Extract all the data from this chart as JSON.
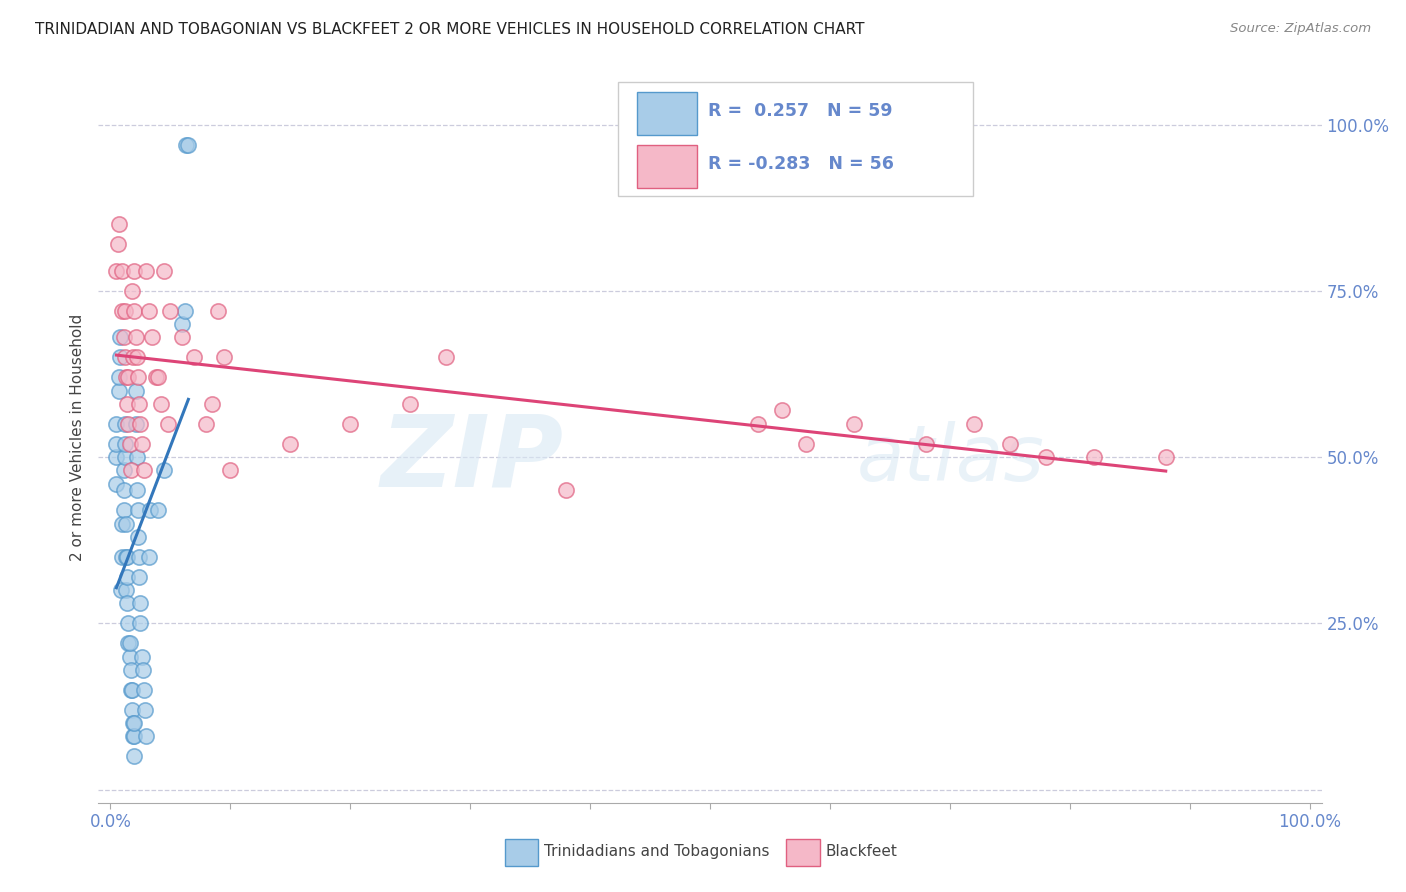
{
  "title": "TRINIDADIAN AND TOBAGONIAN VS BLACKFEET 2 OR MORE VEHICLES IN HOUSEHOLD CORRELATION CHART",
  "source": "Source: ZipAtlas.com",
  "ylabel": "2 or more Vehicles in Household",
  "legend_label1": "Trinidadians and Tobagonians",
  "legend_label2": "Blackfeet",
  "R1": 0.257,
  "N1": 59,
  "R2": -0.283,
  "N2": 56,
  "watermark_zip": "ZIP",
  "watermark_atlas": "atlas",
  "blue_fill": "#a8cce8",
  "blue_edge": "#5599cc",
  "pink_fill": "#f5b8c8",
  "pink_edge": "#e06080",
  "blue_line": "#3377bb",
  "pink_line": "#dd4477",
  "tick_color": "#6688cc",
  "grid_color": "#ccccdd",
  "blue_scatter_x": [
    0.005,
    0.005,
    0.005,
    0.005,
    0.007,
    0.007,
    0.008,
    0.008,
    0.009,
    0.01,
    0.01,
    0.011,
    0.011,
    0.011,
    0.012,
    0.012,
    0.012,
    0.013,
    0.013,
    0.013,
    0.014,
    0.014,
    0.014,
    0.015,
    0.015,
    0.016,
    0.016,
    0.017,
    0.017,
    0.018,
    0.018,
    0.019,
    0.019,
    0.02,
    0.02,
    0.02,
    0.021,
    0.021,
    0.022,
    0.022,
    0.023,
    0.023,
    0.024,
    0.024,
    0.025,
    0.025,
    0.026,
    0.027,
    0.028,
    0.029,
    0.03,
    0.032,
    0.033,
    0.04,
    0.045,
    0.06,
    0.062,
    0.063,
    0.065
  ],
  "blue_scatter_y": [
    0.46,
    0.5,
    0.52,
    0.55,
    0.6,
    0.62,
    0.65,
    0.68,
    0.3,
    0.35,
    0.4,
    0.42,
    0.45,
    0.48,
    0.5,
    0.52,
    0.55,
    0.3,
    0.35,
    0.4,
    0.28,
    0.32,
    0.35,
    0.22,
    0.25,
    0.2,
    0.22,
    0.15,
    0.18,
    0.12,
    0.15,
    0.08,
    0.1,
    0.05,
    0.08,
    0.1,
    0.55,
    0.6,
    0.45,
    0.5,
    0.38,
    0.42,
    0.32,
    0.35,
    0.25,
    0.28,
    0.2,
    0.18,
    0.15,
    0.12,
    0.08,
    0.35,
    0.42,
    0.42,
    0.48,
    0.7,
    0.72,
    0.97,
    0.97
  ],
  "pink_scatter_x": [
    0.005,
    0.006,
    0.007,
    0.01,
    0.01,
    0.011,
    0.012,
    0.012,
    0.013,
    0.014,
    0.015,
    0.015,
    0.016,
    0.017,
    0.018,
    0.019,
    0.02,
    0.02,
    0.021,
    0.022,
    0.023,
    0.024,
    0.025,
    0.026,
    0.028,
    0.03,
    0.032,
    0.035,
    0.038,
    0.04,
    0.042,
    0.045,
    0.048,
    0.05,
    0.06,
    0.07,
    0.08,
    0.085,
    0.09,
    0.095,
    0.1,
    0.15,
    0.2,
    0.25,
    0.28,
    0.38,
    0.54,
    0.56,
    0.58,
    0.62,
    0.68,
    0.72,
    0.75,
    0.78,
    0.82,
    0.88
  ],
  "pink_scatter_y": [
    0.78,
    0.82,
    0.85,
    0.72,
    0.78,
    0.68,
    0.65,
    0.72,
    0.62,
    0.58,
    0.55,
    0.62,
    0.52,
    0.48,
    0.75,
    0.65,
    0.72,
    0.78,
    0.68,
    0.65,
    0.62,
    0.58,
    0.55,
    0.52,
    0.48,
    0.78,
    0.72,
    0.68,
    0.62,
    0.62,
    0.58,
    0.78,
    0.55,
    0.72,
    0.68,
    0.65,
    0.55,
    0.58,
    0.72,
    0.65,
    0.48,
    0.52,
    0.55,
    0.58,
    0.65,
    0.45,
    0.55,
    0.57,
    0.52,
    0.55,
    0.52,
    0.55,
    0.52,
    0.5,
    0.5,
    0.5
  ]
}
